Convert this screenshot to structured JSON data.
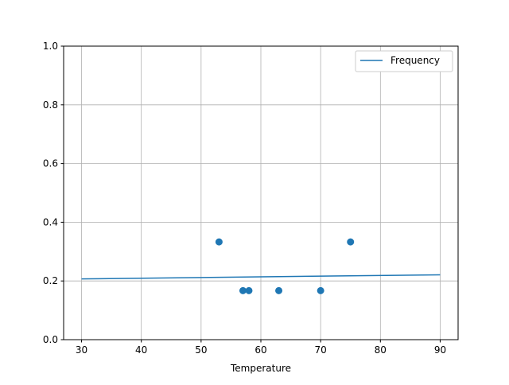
{
  "chart_data": {
    "type": "scatter",
    "title": "",
    "xlabel": "Temperature",
    "ylabel": "",
    "xlim": [
      27,
      93
    ],
    "ylim": [
      0,
      1.0
    ],
    "xticks": [
      30,
      40,
      50,
      60,
      70,
      80,
      90
    ],
    "yticks": [
      0.0,
      0.2,
      0.4,
      0.6,
      0.8,
      1.0
    ],
    "xtick_labels": [
      "30",
      "40",
      "50",
      "60",
      "70",
      "80",
      "90"
    ],
    "ytick_labels": [
      "0.0",
      "0.2",
      "0.4",
      "0.6",
      "0.8",
      "1.0"
    ],
    "grid": true,
    "legend_position": "top-right",
    "scatter": {
      "x": [
        53,
        57,
        58,
        63,
        70,
        75
      ],
      "y": [
        0.333,
        0.167,
        0.167,
        0.167,
        0.167,
        0.333
      ],
      "color": "#1f77b4"
    },
    "series": [
      {
        "name": "Frequency",
        "type": "line",
        "x": [
          30,
          90
        ],
        "y": [
          0.207,
          0.221
        ],
        "color": "#1f77b4"
      }
    ]
  }
}
